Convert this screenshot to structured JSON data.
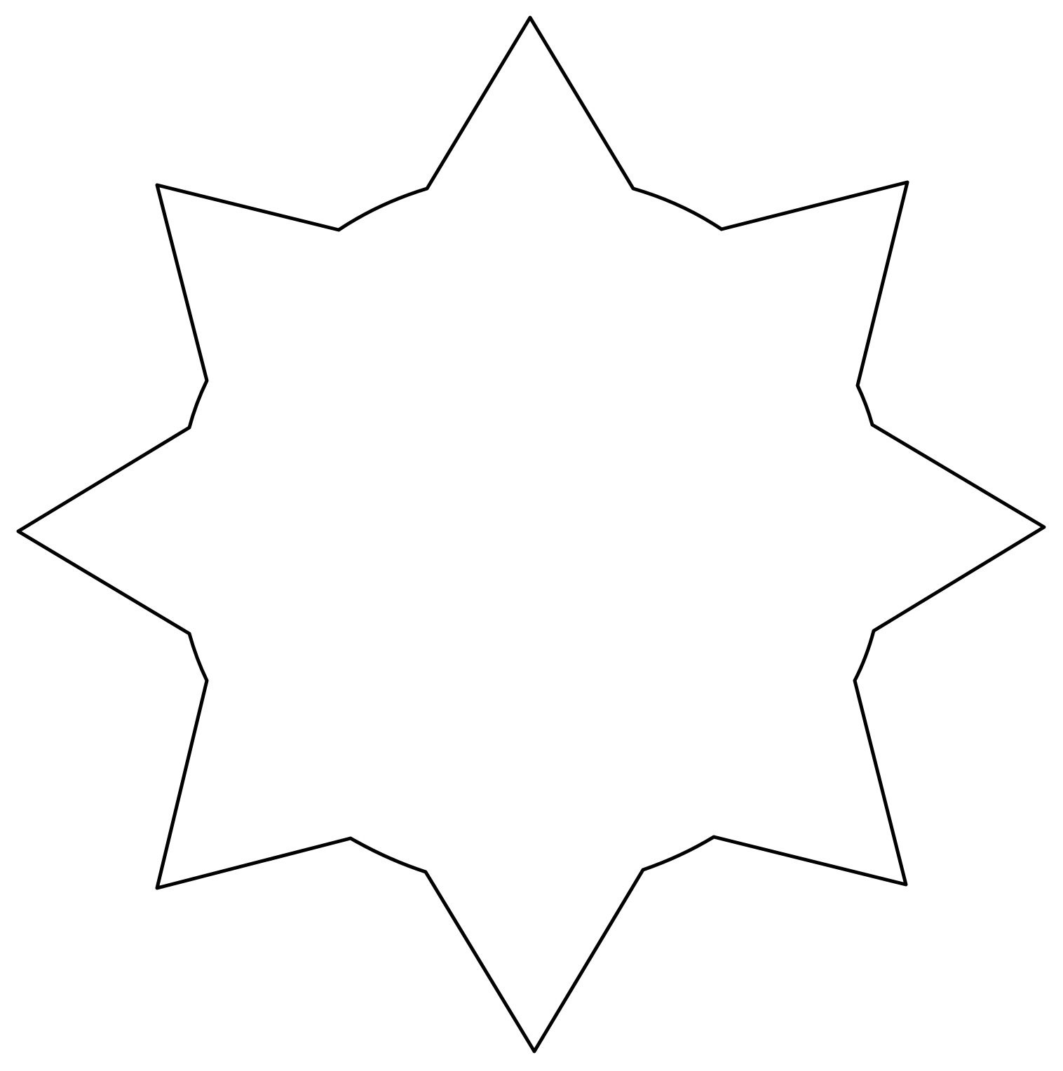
{
  "figure": {
    "shape": "eight-pointed-star",
    "point_count": 8,
    "fill_color": "#ffffff",
    "stroke_color": "#000000",
    "background_color": "#ffffff"
  }
}
